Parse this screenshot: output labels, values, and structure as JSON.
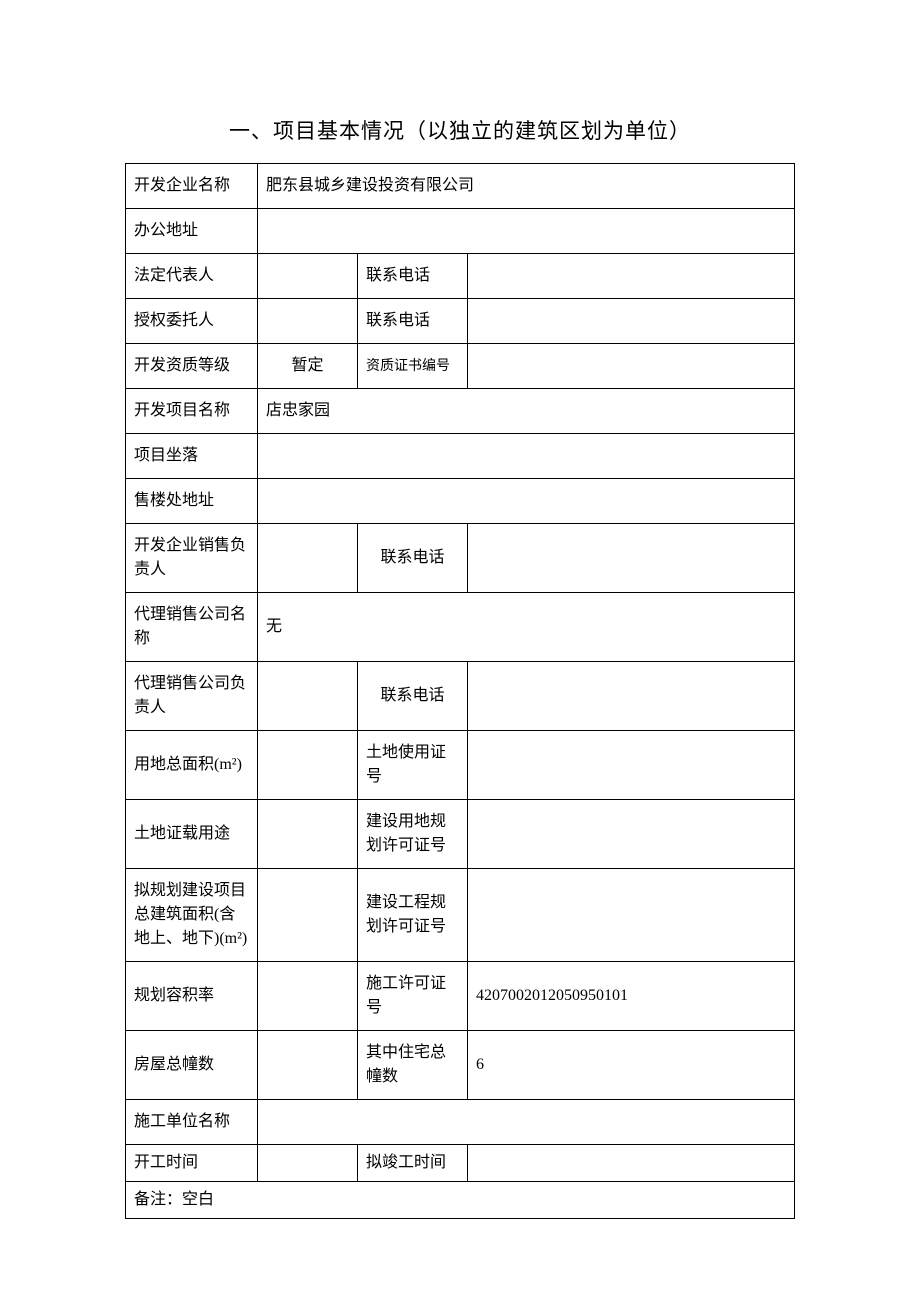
{
  "title": "一、项目基本情况（以独立的建筑区划为单位）",
  "rows": {
    "dev_company_label": "开发企业名称",
    "dev_company_value": "肥东县城乡建设投资有限公司",
    "office_addr_label": "办公地址",
    "office_addr_value": "",
    "legal_rep_label": "法定代表人",
    "legal_rep_value": "",
    "contact_phone_label": "联系电话",
    "legal_rep_phone": "",
    "auth_agent_label": "授权委托人",
    "auth_agent_value": "",
    "auth_agent_phone": "",
    "dev_qual_label": "开发资质等级",
    "dev_qual_value": "暂定",
    "qual_cert_no_label": "资质证书编号",
    "qual_cert_no_value": "",
    "project_name_label": "开发项目名称",
    "project_name_value": "店忠家园",
    "project_location_label": "项目坐落",
    "project_location_value": "",
    "sales_office_addr_label": "售楼处地址",
    "sales_office_addr_value": "",
    "sales_manager_label": "开发企业销售负责人",
    "sales_manager_value": "",
    "sales_manager_phone": "",
    "agency_name_label": "代理销售公司名称",
    "agency_name_value": "无",
    "agency_manager_label": "代理销售公司负责人",
    "agency_manager_value": "",
    "agency_manager_phone": "",
    "land_area_label": "用地总面积(m²)",
    "land_area_value": "",
    "land_cert_no_label": "土地使用证号",
    "land_cert_no_value": "",
    "land_use_label": "土地证载用途",
    "land_use_value": "",
    "land_plan_permit_label": "建设用地规划许可证号",
    "land_plan_permit_value": "",
    "planned_area_label": "拟规划建设项目总建筑面积(含地上、地下)(m²)",
    "planned_area_value": "",
    "construction_plan_permit_label": "建设工程规划许可证号",
    "construction_plan_permit_value": "",
    "plot_ratio_label": "规划容积率",
    "plot_ratio_value": "",
    "construction_permit_label": "施工许可证号",
    "construction_permit_value": "4207002012050950101",
    "total_buildings_label": "房屋总幢数",
    "total_buildings_value": "",
    "residential_buildings_label": "其中住宅总幢数",
    "residential_buildings_value": "6",
    "construction_unit_label": "施工单位名称",
    "construction_unit_value": "",
    "start_date_label": "开工时间",
    "start_date_value": "",
    "completion_date_label": "拟竣工时间",
    "completion_date_value": "",
    "remarks_label": "备注：空白"
  }
}
